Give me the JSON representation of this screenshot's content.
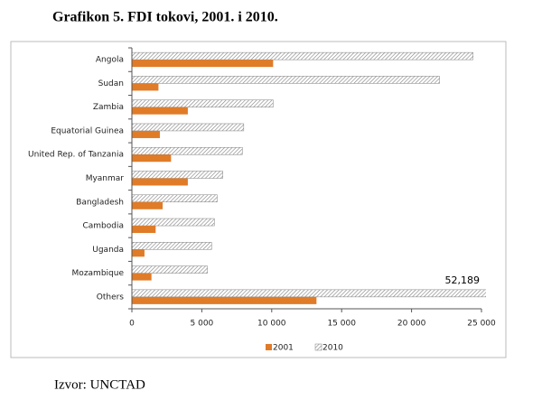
{
  "chart_data": {
    "type": "bar",
    "orientation": "horizontal",
    "title": "Grafikon 5. FDI tokovi, 2001. i 2010.",
    "source": "Izvor: UNCTAD",
    "categories": [
      "Angola",
      "Sudan",
      "Zambia",
      "Equatorial Guinea",
      "United Rep. of Tanzania",
      "Myanmar",
      "Bangladesh",
      "Cambodia",
      "Uganda",
      "Mozambique",
      "Others"
    ],
    "series": [
      {
        "name": "2001",
        "color": "#e07b28",
        "values": [
          10100,
          1900,
          4000,
          2000,
          2800,
          4000,
          2200,
          1700,
          900,
          1400,
          13200
        ]
      },
      {
        "name": "2010",
        "color": "#808080",
        "hatch": true,
        "values": [
          24400,
          22000,
          10100,
          8000,
          7900,
          6500,
          6100,
          5900,
          5700,
          5400,
          52189
        ],
        "value_labels": [
          null,
          null,
          null,
          null,
          null,
          null,
          null,
          null,
          null,
          null,
          "52,189"
        ]
      }
    ],
    "xlim": [
      0,
      25000
    ],
    "xticks": [
      0,
      {
        "value": 5000,
        "label": "5 000"
      },
      {
        "value": 10000,
        "label": "10 000"
      },
      {
        "value": 15000,
        "label": "15 000"
      },
      {
        "value": 20000,
        "label": "20 000"
      },
      {
        "value": 25000,
        "label": "25 000"
      }
    ],
    "legend": "bottom"
  }
}
